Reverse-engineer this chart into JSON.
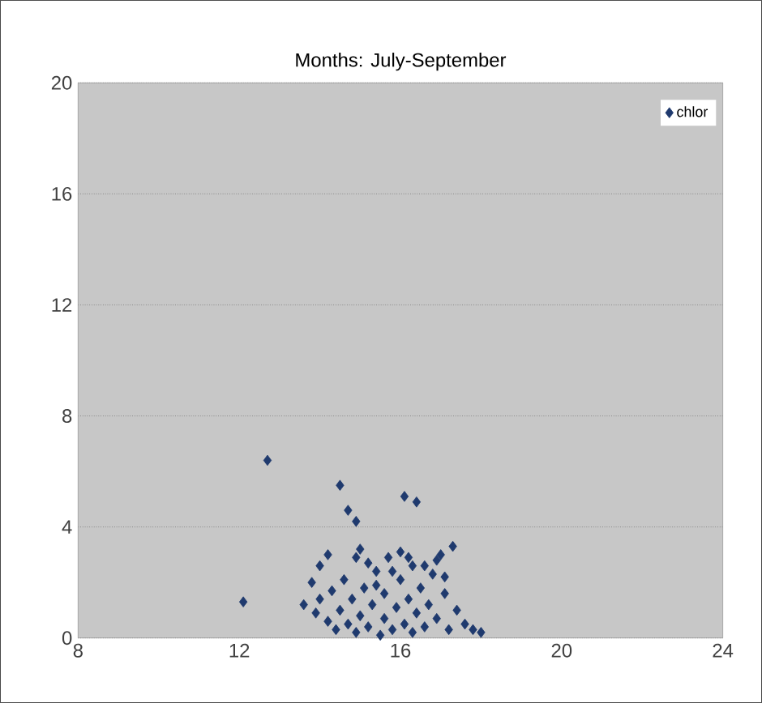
{
  "chart_data": {
    "type": "scatter",
    "title": "Months: July-September",
    "series": [
      {
        "name": "chlor",
        "color": "#1f3a6e",
        "x": [
          12.1,
          12.7,
          13.6,
          13.8,
          14.0,
          14.2,
          14.5,
          14.7,
          14.9,
          16.1,
          16.4,
          14.2,
          14.4,
          14.5,
          14.7,
          14.8,
          14.9,
          15.0,
          15.1,
          15.2,
          15.3,
          15.4,
          15.5,
          15.6,
          15.6,
          15.7,
          15.8,
          15.9,
          16.0,
          16.1,
          16.2,
          16.3,
          16.3,
          16.4,
          16.5,
          16.6,
          16.7,
          16.8,
          16.9,
          17.0,
          17.1,
          17.2,
          17.3,
          17.4,
          17.6,
          17.8,
          18.0,
          14.9,
          15.0,
          15.2,
          14.6,
          14.3,
          13.9,
          16.0,
          16.2,
          15.4,
          15.8,
          16.6,
          16.9,
          17.1,
          14.0
        ],
        "values": [
          1.3,
          6.4,
          1.2,
          2.0,
          2.6,
          3.0,
          5.5,
          4.6,
          4.2,
          5.1,
          4.9,
          0.6,
          0.3,
          1.0,
          0.5,
          1.4,
          0.2,
          0.8,
          1.8,
          0.4,
          1.2,
          2.4,
          0.1,
          0.7,
          1.6,
          2.9,
          0.3,
          1.1,
          2.1,
          0.5,
          1.4,
          0.2,
          2.6,
          0.9,
          1.8,
          0.4,
          1.2,
          2.3,
          0.7,
          3.0,
          1.6,
          0.3,
          3.3,
          1.0,
          0.5,
          0.3,
          0.2,
          2.9,
          3.2,
          2.7,
          2.1,
          1.7,
          0.9,
          3.1,
          2.9,
          1.9,
          2.4,
          2.6,
          2.8,
          2.2,
          1.4
        ]
      }
    ],
    "xlim": [
      8,
      24
    ],
    "xticks": [
      8,
      12,
      16,
      20,
      24
    ],
    "ylim": [
      0,
      20
    ],
    "yticks": [
      0,
      4,
      8,
      12,
      16,
      20
    ],
    "grid": "y",
    "legend": "top right",
    "marker": "diamond"
  }
}
